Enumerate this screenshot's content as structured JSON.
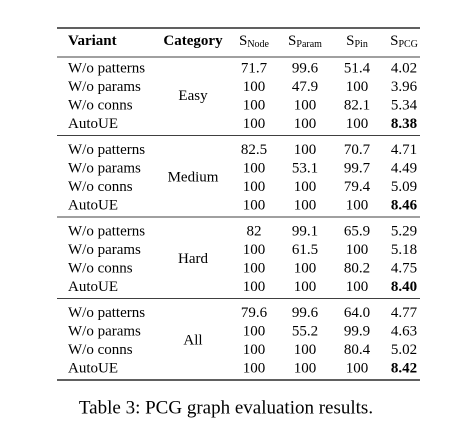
{
  "table": {
    "header": [
      {
        "main": "Variant"
      },
      {
        "main": "Category"
      },
      {
        "main": "S",
        "sub": "Node"
      },
      {
        "main": "S",
        "sub": "Param"
      },
      {
        "main": "S",
        "sub": "Pin"
      },
      {
        "main": "S",
        "sub": "PCG"
      }
    ],
    "groups": [
      {
        "category": "Easy",
        "rows": [
          [
            "W/o patterns",
            "71.7",
            "99.6",
            "51.4",
            "4.02"
          ],
          [
            "W/o params",
            "100",
            "47.9",
            "100",
            "3.96"
          ],
          [
            "W/o conns",
            "100",
            "100",
            "82.1",
            "5.34"
          ],
          [
            "AutoUE",
            "100",
            "100",
            "100",
            "8.38"
          ]
        ]
      },
      {
        "category": "Medium",
        "rows": [
          [
            "W/o patterns",
            "82.5",
            "100",
            "70.7",
            "4.71"
          ],
          [
            "W/o params",
            "100",
            "53.1",
            "99.7",
            "4.49"
          ],
          [
            "W/o conns",
            "100",
            "100",
            "79.4",
            "5.09"
          ],
          [
            "AutoUE",
            "100",
            "100",
            "100",
            "8.46"
          ]
        ]
      },
      {
        "category": "Hard",
        "rows": [
          [
            "W/o patterns",
            "82",
            "99.1",
            "65.9",
            "5.29"
          ],
          [
            "W/o params",
            "100",
            "61.5",
            "100",
            "5.18"
          ],
          [
            "W/o conns",
            "100",
            "100",
            "80.2",
            "4.75"
          ],
          [
            "AutoUE",
            "100",
            "100",
            "100",
            "8.40"
          ]
        ]
      },
      {
        "category": "All",
        "rows": [
          [
            "W/o patterns",
            "79.6",
            "99.6",
            "64.0",
            "4.77"
          ],
          [
            "W/o params",
            "100",
            "55.2",
            "99.9",
            "4.63"
          ],
          [
            "W/o conns",
            "100",
            "100",
            "80.4",
            "5.02"
          ],
          [
            "AutoUE",
            "100",
            "100",
            "100",
            "8.42"
          ]
        ]
      }
    ],
    "caption": "Table 3: PCG graph evaluation results."
  }
}
